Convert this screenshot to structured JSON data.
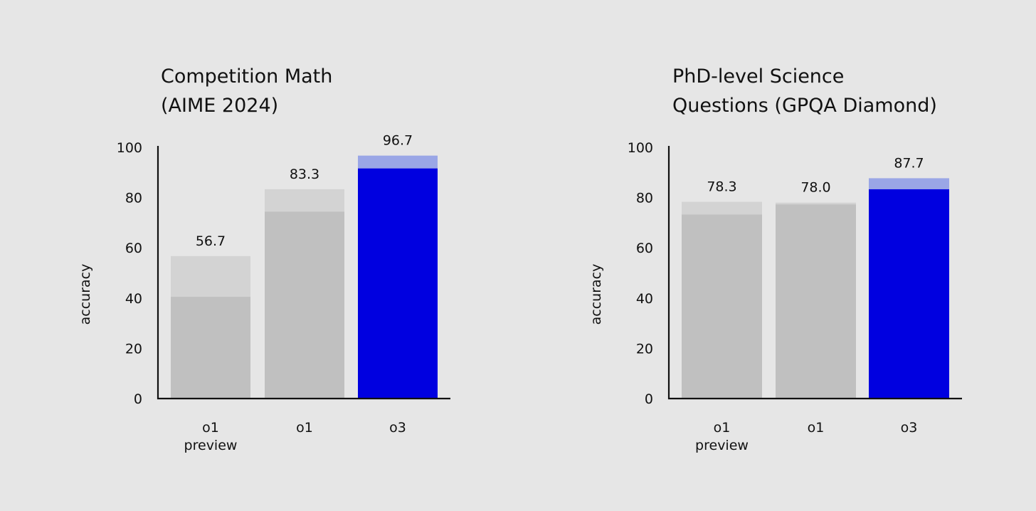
{
  "chart_data": [
    {
      "type": "bar",
      "title": [
        "Competition Math",
        "(AIME 2024)"
      ],
      "ylabel": "accuracy",
      "ylim": [
        0,
        100
      ],
      "yticks": [
        0,
        20,
        40,
        60,
        80,
        100
      ],
      "categories": [
        [
          "o1",
          "preview"
        ],
        [
          "o1"
        ],
        [
          "o3"
        ]
      ],
      "values": [
        56.7,
        83.3,
        96.7
      ],
      "value_labels": [
        "56.7",
        "83.3",
        "96.7"
      ],
      "inner_values": [
        40.5,
        74.4,
        91.6
      ],
      "bar_colors": [
        "#c0c0c0",
        "#c0c0c0",
        "#0000e0"
      ],
      "overlay_colors": [
        "#d3d3d3",
        "#d3d3d3",
        "#9aa6e6"
      ]
    },
    {
      "type": "bar",
      "title": [
        "PhD-level Science",
        "Questions (GPQA Diamond)"
      ],
      "ylabel": "accuracy",
      "ylim": [
        0,
        100
      ],
      "yticks": [
        0,
        20,
        40,
        60,
        80,
        100
      ],
      "categories": [
        [
          "o1",
          "preview"
        ],
        [
          "o1"
        ],
        [
          "o3"
        ]
      ],
      "values": [
        78.3,
        78.0,
        87.7
      ],
      "value_labels": [
        "78.3",
        "78.0",
        "87.7"
      ],
      "inner_values": [
        73.3,
        77.3,
        83.3
      ],
      "bar_colors": [
        "#c0c0c0",
        "#c0c0c0",
        "#0000e0"
      ],
      "overlay_colors": [
        "#d3d3d3",
        "#d3d3d3",
        "#9aa6e6"
      ]
    }
  ]
}
